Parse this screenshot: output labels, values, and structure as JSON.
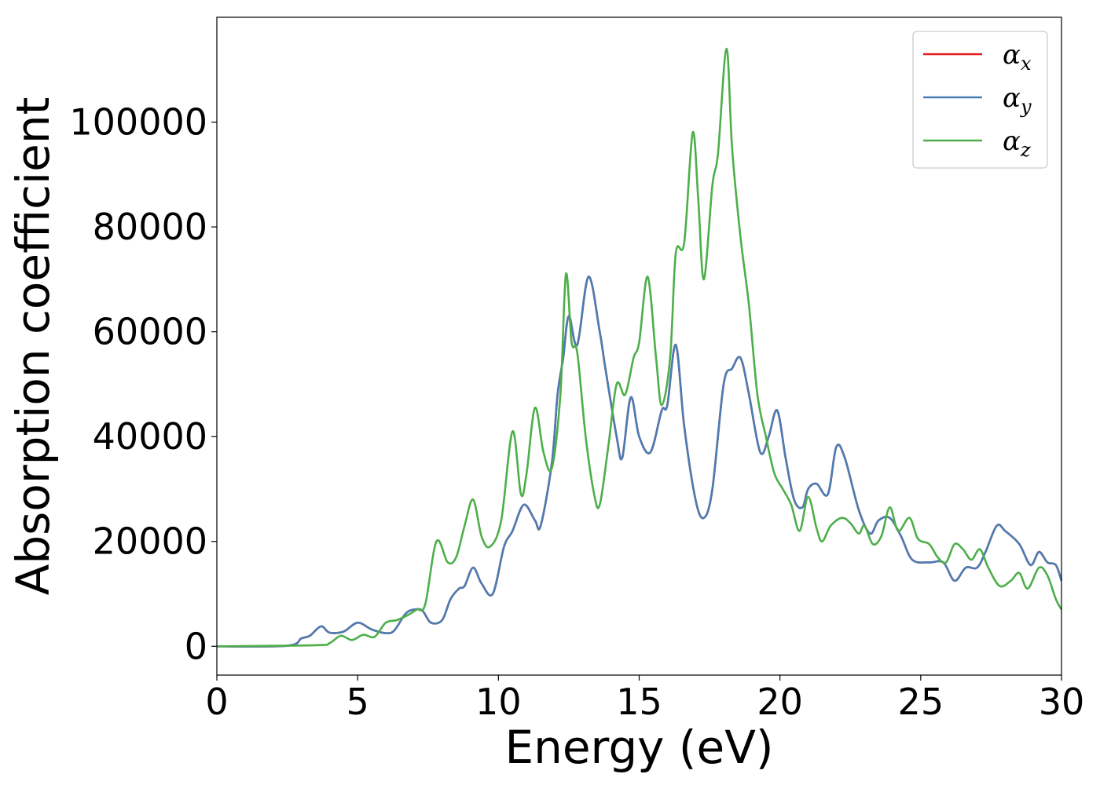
{
  "chart_data": {
    "type": "line",
    "title": "",
    "xlabel": "Energy (eV)",
    "ylabel": "Absorption coefficient",
    "xlim": [
      0,
      30
    ],
    "ylim": [
      -5500,
      120000
    ],
    "x_ticks": [
      0,
      5,
      10,
      15,
      20,
      25,
      30
    ],
    "x_tick_labels": [
      "0",
      "5",
      "10",
      "15",
      "20",
      "25",
      "30"
    ],
    "y_ticks": [
      0,
      20000,
      40000,
      60000,
      80000,
      100000
    ],
    "y_tick_labels": [
      "0",
      "20000",
      "40000",
      "60000",
      "80000",
      "100000"
    ],
    "grid": false,
    "legend_position": "top-right",
    "series": [
      {
        "name": "α_x",
        "legend_symbol": "α",
        "legend_subscript": "x",
        "color": "#e41a1c",
        "points": [
          [
            0,
            0
          ],
          [
            2.5,
            100
          ],
          [
            3.0,
            1500
          ],
          [
            3.3,
            2000
          ],
          [
            3.7,
            3800
          ],
          [
            4.0,
            2600
          ],
          [
            4.5,
            2800
          ],
          [
            5.0,
            4500
          ],
          [
            5.5,
            3200
          ],
          [
            6.0,
            2500
          ],
          [
            6.3,
            3000
          ],
          [
            6.7,
            6200
          ],
          [
            7.0,
            7000
          ],
          [
            7.3,
            6800
          ],
          [
            7.6,
            4500
          ],
          [
            8.0,
            5000
          ],
          [
            8.3,
            9000
          ],
          [
            8.6,
            11000
          ],
          [
            8.8,
            11500
          ],
          [
            9.1,
            15000
          ],
          [
            9.4,
            12000
          ],
          [
            9.8,
            10000
          ],
          [
            10.2,
            19000
          ],
          [
            10.5,
            22000
          ],
          [
            10.9,
            27000
          ],
          [
            11.3,
            24000
          ],
          [
            11.5,
            23000
          ],
          [
            11.9,
            35000
          ],
          [
            12.1,
            48000
          ],
          [
            12.3,
            55000
          ],
          [
            12.5,
            63000
          ],
          [
            12.8,
            57500
          ],
          [
            13.2,
            70500
          ],
          [
            13.6,
            60000
          ],
          [
            13.8,
            53000
          ],
          [
            14.2,
            40000
          ],
          [
            14.4,
            36000
          ],
          [
            14.7,
            47500
          ],
          [
            15.0,
            40000
          ],
          [
            15.4,
            37000
          ],
          [
            15.8,
            45000
          ],
          [
            16.0,
            46000
          ],
          [
            16.3,
            57500
          ],
          [
            16.6,
            42000
          ],
          [
            17.0,
            28000
          ],
          [
            17.3,
            24500
          ],
          [
            17.6,
            30000
          ],
          [
            18.0,
            50000
          ],
          [
            18.3,
            53000
          ],
          [
            18.6,
            55000
          ],
          [
            18.9,
            48000
          ],
          [
            19.3,
            37000
          ],
          [
            19.6,
            40000
          ],
          [
            19.9,
            45000
          ],
          [
            20.2,
            36000
          ],
          [
            20.5,
            28000
          ],
          [
            20.8,
            26500
          ],
          [
            21.0,
            30000
          ],
          [
            21.3,
            31000
          ],
          [
            21.7,
            29000
          ],
          [
            22.0,
            38000
          ],
          [
            22.3,
            36000
          ],
          [
            22.8,
            26000
          ],
          [
            23.2,
            21500
          ],
          [
            23.5,
            24000
          ],
          [
            23.9,
            24500
          ],
          [
            24.3,
            21000
          ],
          [
            24.7,
            16500
          ],
          [
            25.3,
            16000
          ],
          [
            25.8,
            16000
          ],
          [
            26.2,
            12500
          ],
          [
            26.6,
            15000
          ],
          [
            27.0,
            15000
          ],
          [
            27.3,
            18000
          ],
          [
            27.7,
            23000
          ],
          [
            28.0,
            22000
          ],
          [
            28.5,
            19500
          ],
          [
            28.9,
            15500
          ],
          [
            29.2,
            18000
          ],
          [
            29.5,
            16000
          ],
          [
            29.8,
            15500
          ],
          [
            30.0,
            12500
          ]
        ]
      },
      {
        "name": "α_y",
        "legend_symbol": "α",
        "legend_subscript": "y",
        "color": "#4a7db3",
        "points": [
          [
            0,
            0
          ],
          [
            2.5,
            100
          ],
          [
            3.0,
            1500
          ],
          [
            3.3,
            2000
          ],
          [
            3.7,
            3800
          ],
          [
            4.0,
            2600
          ],
          [
            4.5,
            2800
          ],
          [
            5.0,
            4500
          ],
          [
            5.5,
            3200
          ],
          [
            6.0,
            2500
          ],
          [
            6.3,
            3000
          ],
          [
            6.7,
            6200
          ],
          [
            7.0,
            7000
          ],
          [
            7.3,
            6800
          ],
          [
            7.6,
            4500
          ],
          [
            8.0,
            5000
          ],
          [
            8.3,
            9000
          ],
          [
            8.6,
            11000
          ],
          [
            8.8,
            11500
          ],
          [
            9.1,
            15000
          ],
          [
            9.4,
            12000
          ],
          [
            9.8,
            10000
          ],
          [
            10.2,
            19000
          ],
          [
            10.5,
            22000
          ],
          [
            10.9,
            27000
          ],
          [
            11.3,
            24000
          ],
          [
            11.5,
            23000
          ],
          [
            11.9,
            35000
          ],
          [
            12.1,
            48000
          ],
          [
            12.3,
            55000
          ],
          [
            12.5,
            63000
          ],
          [
            12.8,
            57500
          ],
          [
            13.2,
            70500
          ],
          [
            13.6,
            60000
          ],
          [
            13.8,
            53000
          ],
          [
            14.2,
            40000
          ],
          [
            14.4,
            36000
          ],
          [
            14.7,
            47500
          ],
          [
            15.0,
            40000
          ],
          [
            15.4,
            37000
          ],
          [
            15.8,
            45000
          ],
          [
            16.0,
            46000
          ],
          [
            16.3,
            57500
          ],
          [
            16.6,
            42000
          ],
          [
            17.0,
            28000
          ],
          [
            17.3,
            24500
          ],
          [
            17.6,
            30000
          ],
          [
            18.0,
            50000
          ],
          [
            18.3,
            53000
          ],
          [
            18.6,
            55000
          ],
          [
            18.9,
            48000
          ],
          [
            19.3,
            37000
          ],
          [
            19.6,
            40000
          ],
          [
            19.9,
            45000
          ],
          [
            20.2,
            36000
          ],
          [
            20.5,
            28000
          ],
          [
            20.8,
            26500
          ],
          [
            21.0,
            30000
          ],
          [
            21.3,
            31000
          ],
          [
            21.7,
            29000
          ],
          [
            22.0,
            38000
          ],
          [
            22.3,
            36000
          ],
          [
            22.8,
            26000
          ],
          [
            23.2,
            21500
          ],
          [
            23.5,
            24000
          ],
          [
            23.9,
            24500
          ],
          [
            24.3,
            21000
          ],
          [
            24.7,
            16500
          ],
          [
            25.3,
            16000
          ],
          [
            25.8,
            16000
          ],
          [
            26.2,
            12500
          ],
          [
            26.6,
            15000
          ],
          [
            27.0,
            15000
          ],
          [
            27.3,
            18000
          ],
          [
            27.7,
            23000
          ],
          [
            28.0,
            22000
          ],
          [
            28.5,
            19500
          ],
          [
            28.9,
            15500
          ],
          [
            29.2,
            18000
          ],
          [
            29.5,
            16000
          ],
          [
            29.8,
            15500
          ],
          [
            30.0,
            12500
          ]
        ]
      },
      {
        "name": "α_z",
        "legend_symbol": "α",
        "legend_subscript": "z",
        "color": "#4daf4a",
        "points": [
          [
            0,
            0
          ],
          [
            3.5,
            200
          ],
          [
            4.0,
            600
          ],
          [
            4.4,
            2000
          ],
          [
            4.8,
            1200
          ],
          [
            5.2,
            2200
          ],
          [
            5.6,
            1800
          ],
          [
            6.0,
            4500
          ],
          [
            6.4,
            5000
          ],
          [
            6.8,
            6000
          ],
          [
            7.1,
            7000
          ],
          [
            7.4,
            8000
          ],
          [
            7.8,
            20000
          ],
          [
            8.2,
            16000
          ],
          [
            8.5,
            17000
          ],
          [
            8.8,
            23000
          ],
          [
            9.1,
            28000
          ],
          [
            9.4,
            21000
          ],
          [
            9.7,
            19000
          ],
          [
            10.1,
            24000
          ],
          [
            10.5,
            41000
          ],
          [
            10.8,
            29000
          ],
          [
            11.0,
            33000
          ],
          [
            11.3,
            45500
          ],
          [
            11.6,
            37000
          ],
          [
            11.9,
            34000
          ],
          [
            12.2,
            48000
          ],
          [
            12.4,
            71000
          ],
          [
            12.6,
            58000
          ],
          [
            12.8,
            56000
          ],
          [
            13.1,
            40000
          ],
          [
            13.4,
            29000
          ],
          [
            13.6,
            27000
          ],
          [
            13.9,
            38000
          ],
          [
            14.2,
            50000
          ],
          [
            14.5,
            48000
          ],
          [
            14.8,
            55000
          ],
          [
            15.0,
            58000
          ],
          [
            15.3,
            70500
          ],
          [
            15.6,
            55000
          ],
          [
            15.8,
            46000
          ],
          [
            16.1,
            55000
          ],
          [
            16.3,
            75000
          ],
          [
            16.6,
            77000
          ],
          [
            16.9,
            98000
          ],
          [
            17.1,
            85000
          ],
          [
            17.3,
            70000
          ],
          [
            17.6,
            88000
          ],
          [
            17.8,
            94000
          ],
          [
            18.1,
            114000
          ],
          [
            18.3,
            95000
          ],
          [
            18.6,
            78000
          ],
          [
            18.9,
            65000
          ],
          [
            19.2,
            48000
          ],
          [
            19.5,
            40000
          ],
          [
            19.8,
            33000
          ],
          [
            20.1,
            30000
          ],
          [
            20.4,
            27000
          ],
          [
            20.7,
            22000
          ],
          [
            21.0,
            28500
          ],
          [
            21.3,
            22500
          ],
          [
            21.5,
            20000
          ],
          [
            21.8,
            23000
          ],
          [
            22.2,
            24500
          ],
          [
            22.5,
            23500
          ],
          [
            22.8,
            21500
          ],
          [
            23.0,
            23000
          ],
          [
            23.3,
            19500
          ],
          [
            23.6,
            21000
          ],
          [
            23.9,
            26500
          ],
          [
            24.2,
            22000
          ],
          [
            24.6,
            24500
          ],
          [
            24.9,
            20500
          ],
          [
            25.3,
            19500
          ],
          [
            25.6,
            17000
          ],
          [
            25.9,
            16000
          ],
          [
            26.2,
            19500
          ],
          [
            26.5,
            18500
          ],
          [
            26.8,
            16500
          ],
          [
            27.1,
            18500
          ],
          [
            27.4,
            15000
          ],
          [
            27.8,
            11500
          ],
          [
            28.2,
            12500
          ],
          [
            28.5,
            14000
          ],
          [
            28.8,
            11000
          ],
          [
            29.2,
            15000
          ],
          [
            29.5,
            13500
          ],
          [
            29.8,
            9000
          ],
          [
            30.0,
            7000
          ]
        ]
      }
    ]
  }
}
